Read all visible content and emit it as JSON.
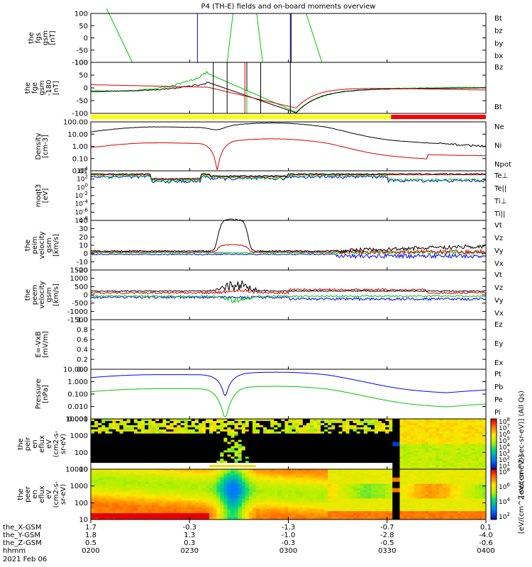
{
  "title": "P4 (TH-E) fields and on-board moments overview",
  "colors": {
    "black": "#000000",
    "red": "#d40000",
    "green": "#00c800",
    "blue": "#0000ff",
    "yellow": "#ffff00",
    "barred": "#ff0000"
  },
  "chart_data": [
    {
      "type": "line",
      "ylabel": [
        "the",
        "fgs",
        "gsm",
        "[nT]"
      ],
      "ylim": [
        -100,
        100
      ],
      "yticks": [
        "100",
        "50",
        "0",
        "-50",
        "-100"
      ],
      "legend": [
        {
          "name": "Bt",
          "color": "black"
        },
        {
          "name": "bz",
          "color": "red"
        },
        {
          "name": "by",
          "color": "green"
        },
        {
          "name": "bx",
          "color": "blue"
        }
      ]
    },
    {
      "type": "line",
      "ylabel": [
        "the",
        "fge",
        "gsm",
        "-180",
        "[nT]"
      ],
      "ylim": [
        -120,
        120
      ],
      "yticks": [
        "100",
        "50",
        "0",
        "-50",
        "-100"
      ],
      "legend": [
        {
          "name": "Bz",
          "color": "red"
        },
        {
          "name": "Bt",
          "color": "black"
        }
      ]
    },
    {
      "type": "line",
      "ylabel": [
        "Density",
        "[cm-3]"
      ],
      "yscale": "log",
      "yticks": [
        "100.00",
        "10.00",
        "1.00",
        "0.10",
        "0.01"
      ],
      "legend": [
        {
          "name": "Ne",
          "color": "red"
        },
        {
          "name": "Ni",
          "color": "black"
        },
        {
          "name": "Npot",
          "color": "blue"
        }
      ]
    },
    {
      "type": "line",
      "ylabel": [
        "moqt3",
        "[eV]"
      ],
      "yscale": "log",
      "yticks": [
        "10^4",
        "10^2",
        "10^0",
        "10^-2",
        "10^-4",
        "10^-6",
        "10^-8"
      ],
      "legend": [
        {
          "name": "Te⊥",
          "color": "red"
        },
        {
          "name": "Te||",
          "color": "black"
        },
        {
          "name": "Ti⊥",
          "color": "blue"
        },
        {
          "name": "Ti||",
          "color": "green"
        }
      ]
    },
    {
      "type": "line",
      "ylabel": [
        "the",
        "peim",
        "velocity",
        "gsm",
        "[km/s]"
      ],
      "ylim": [
        -20,
        40
      ],
      "yticks": [
        "40",
        "30",
        "20",
        "10",
        "0",
        "-10",
        "-20"
      ],
      "legend": [
        {
          "name": "Vt",
          "color": "black"
        },
        {
          "name": "Vz",
          "color": "red"
        },
        {
          "name": "Vy",
          "color": "green"
        },
        {
          "name": "Vx",
          "color": "blue"
        }
      ]
    },
    {
      "type": "line",
      "ylabel": [
        "the",
        "peem",
        "velocity",
        "gsm",
        "[km/s]"
      ],
      "ylim": [
        -1500,
        1500
      ],
      "yticks": [
        "1500",
        "1000",
        "500",
        "0",
        "-500",
        "-1000",
        "-1500"
      ],
      "legend": [
        {
          "name": "Vt",
          "color": "black"
        },
        {
          "name": "Vz",
          "color": "red"
        },
        {
          "name": "Vy",
          "color": "green"
        },
        {
          "name": "Vx",
          "color": "blue"
        }
      ]
    },
    {
      "type": "line",
      "ylabel": [
        "E=-VxB",
        "[mV/m]"
      ],
      "ylim": [
        0,
        1
      ],
      "yticks": [
        "1.0",
        "0.8",
        "0.6",
        "0.4",
        "0.2",
        "0.0"
      ],
      "legend": [
        {
          "name": "Ez",
          "color": "red"
        },
        {
          "name": "Ey",
          "color": "green"
        },
        {
          "name": "Ex",
          "color": "blue"
        }
      ]
    },
    {
      "type": "line",
      "ylabel": [
        "Pressure",
        "[nPa]"
      ],
      "yscale": "log",
      "yticks": [
        "10.000",
        "1.000",
        "0.100",
        "0.010",
        "0.001"
      ],
      "legend": [
        {
          "name": "Pt",
          "color": "black"
        },
        {
          "name": "Pb",
          "color": "red"
        },
        {
          "name": "Pe",
          "color": "green"
        },
        {
          "name": "Pi",
          "color": "blue"
        }
      ]
    },
    {
      "type": "heatmap",
      "ylabel": [
        "the",
        "peir",
        "en",
        "eflux",
        "eV",
        "(cm2-s-",
        "sr-eV)"
      ],
      "yscale": "log",
      "yticks": [
        "10000",
        "1000",
        "100",
        "10"
      ],
      "colorbar_ticks": [
        "10^8",
        "10^7",
        "10^6",
        "10^5",
        "10^4",
        "10^3",
        "10^2",
        "10^1"
      ],
      "colorbar_label": "[eV/(cm^2-sec-sr-eV)] (All Qs)"
    },
    {
      "type": "heatmap",
      "ylabel": [
        "the",
        "peer",
        "en",
        "eflux",
        "eV",
        "(cm2-s-",
        "sr-eV)"
      ],
      "yscale": "log",
      "yticks": [
        "10000",
        "1000",
        "100",
        "10"
      ],
      "colorbar_ticks": [
        "10^8",
        "10^6",
        "10^4",
        "10^2"
      ],
      "colorbar_label": "[eV/(cm^2-sec-sr-eV)]"
    }
  ],
  "xaxis": {
    "rows": [
      {
        "label": "the_X-GSM",
        "values": [
          "1.7",
          "-0.3",
          "-1.3",
          "-0.7",
          "0.1"
        ]
      },
      {
        "label": "the_Y-GSM",
        "values": [
          "1.8",
          "1.3",
          "-1.0",
          "-2.8",
          "-4.0"
        ]
      },
      {
        "label": "the_Z-GSM",
        "values": [
          "0.5",
          "0.3",
          "-0.3",
          "-0.5",
          "-0.6"
        ]
      },
      {
        "label": "hhmm",
        "values": [
          "0200",
          "0230",
          "0300",
          "0330",
          "0400"
        ]
      }
    ],
    "date": "2021 Feb 06"
  }
}
